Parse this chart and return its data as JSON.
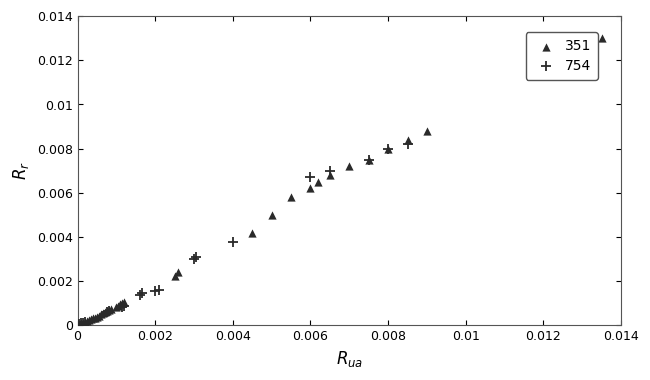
{
  "tri_351_x": [
    5e-05,
    0.0001,
    0.00015,
    0.0002,
    0.00025,
    0.0003,
    0.00035,
    0.0004,
    0.00045,
    0.0005,
    0.00055,
    0.0006,
    0.00065,
    0.0007,
    0.00075,
    0.0008,
    0.00085,
    0.001,
    0.00105,
    0.0011,
    0.00115,
    0.0012,
    0.0025,
    0.0026,
    0.0045,
    0.005,
    0.0055,
    0.006,
    0.0062,
    0.0065,
    0.007,
    0.0075,
    0.008,
    0.0085,
    0.009,
    0.012,
    0.0125,
    0.0135
  ],
  "tri_351_y": [
    5e-05,
    0.0001,
    0.00012,
    0.00015,
    0.0002,
    0.00025,
    0.0003,
    0.00032,
    0.00035,
    0.0004,
    0.00045,
    0.0005,
    0.00055,
    0.0006,
    0.00065,
    0.0007,
    0.00075,
    0.00085,
    0.0009,
    0.00095,
    0.001,
    0.00105,
    0.00225,
    0.0024,
    0.0042,
    0.005,
    0.0058,
    0.0062,
    0.0065,
    0.0068,
    0.0072,
    0.0075,
    0.008,
    0.0084,
    0.0088,
    0.012,
    0.0119,
    0.013
  ],
  "plus_754_x": [
    5e-05,
    0.0001,
    0.00015,
    0.0002,
    0.00075,
    0.0008,
    0.00115,
    0.0012,
    0.0016,
    0.00165,
    0.002,
    0.0021,
    0.003,
    0.00305,
    0.004,
    0.006,
    0.0065,
    0.0075,
    0.008,
    0.0085
  ],
  "plus_754_y": [
    5e-05,
    0.0001,
    0.00013,
    0.00015,
    0.0006,
    0.00065,
    0.00085,
    0.0009,
    0.0014,
    0.00145,
    0.00155,
    0.0016,
    0.003,
    0.0031,
    0.0038,
    0.0067,
    0.007,
    0.0075,
    0.008,
    0.0082
  ],
  "xlabel": "R_{ua}",
  "ylabel": "R_r",
  "xlim": [
    0,
    0.014
  ],
  "ylim": [
    0,
    0.014
  ],
  "xticks": [
    0,
    0.002,
    0.004,
    0.006,
    0.008,
    0.01,
    0.012,
    0.014
  ],
  "yticks": [
    0,
    0.002,
    0.004,
    0.006,
    0.008,
    0.01,
    0.012,
    0.014
  ],
  "legend_351_label": "351",
  "legend_754_label": "754",
  "marker_color": "#2a2a2a",
  "bg_color": "#ffffff"
}
